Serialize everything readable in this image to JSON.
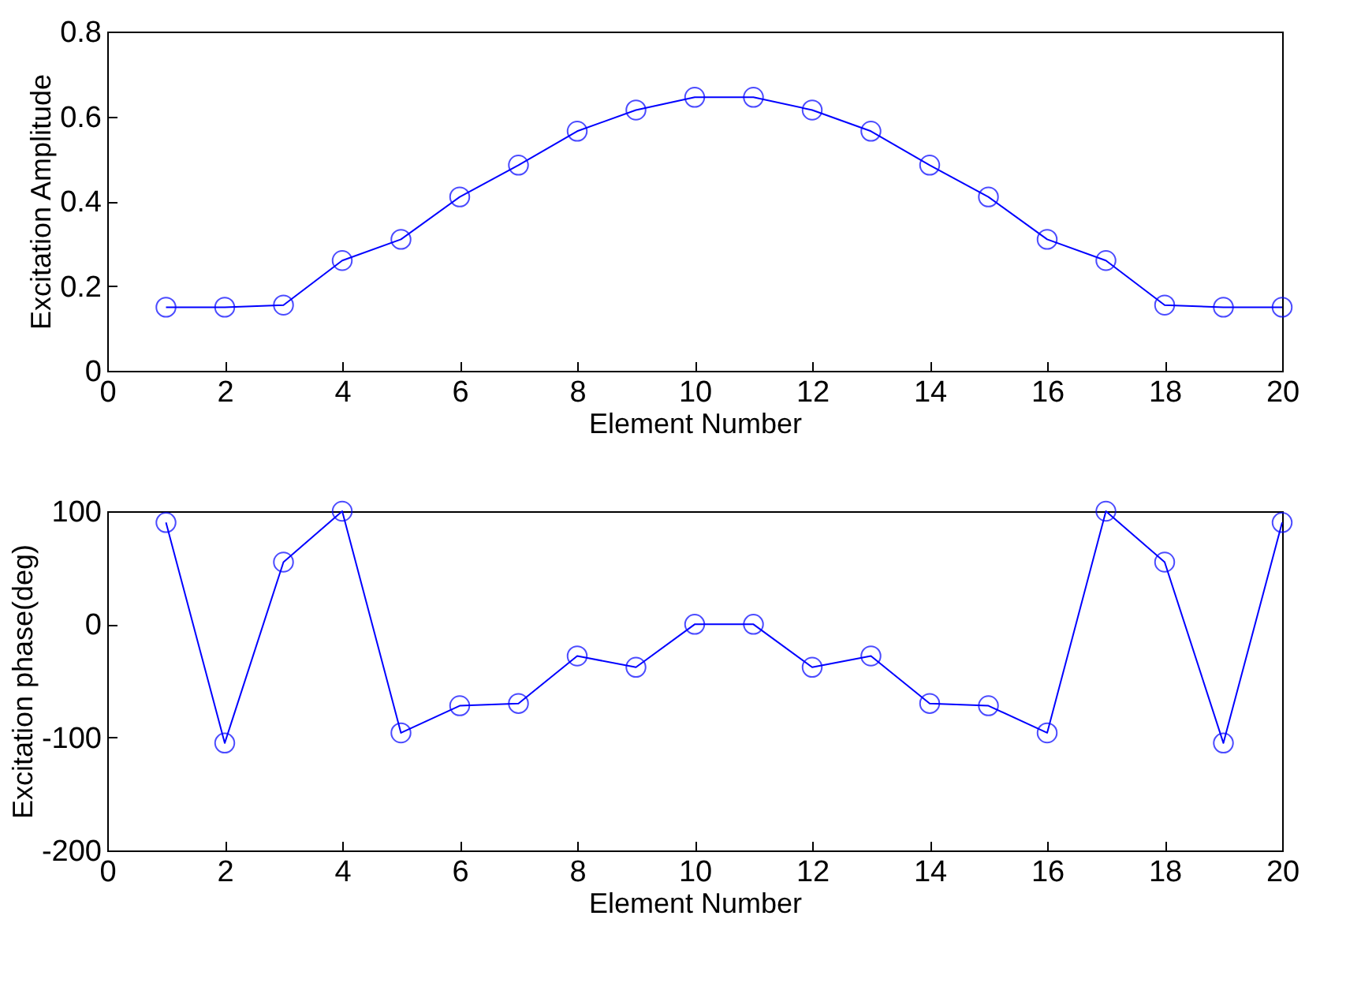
{
  "chart_data": [
    {
      "type": "line",
      "x": [
        1,
        2,
        3,
        4,
        5,
        6,
        7,
        8,
        9,
        10,
        11,
        12,
        13,
        14,
        15,
        16,
        17,
        18,
        19,
        20
      ],
      "xlabel": "Element Number",
      "ylabel": "Excitation Amplitude",
      "xlim": [
        0,
        20
      ],
      "xticks": [
        0,
        2,
        4,
        6,
        8,
        10,
        12,
        14,
        16,
        18,
        20
      ],
      "ylim": [
        0,
        0.8
      ],
      "yticks": [
        0,
        0.2,
        0.4,
        0.6,
        0.8
      ],
      "marker": "circle",
      "line_style": "solid",
      "grid": false,
      "legend": false,
      "series": [
        {
          "color": "#0000ff",
          "values": [
            0.15,
            0.15,
            0.155,
            0.26,
            0.31,
            0.41,
            0.485,
            0.565,
            0.615,
            0.645,
            0.645,
            0.615,
            0.565,
            0.485,
            0.41,
            0.31,
            0.26,
            0.155,
            0.15,
            0.15
          ]
        }
      ]
    },
    {
      "type": "line",
      "x": [
        1,
        2,
        3,
        4,
        5,
        6,
        7,
        8,
        9,
        10,
        11,
        12,
        13,
        14,
        15,
        16,
        17,
        18,
        19,
        20
      ],
      "xlabel": "Element Number",
      "ylabel": "Excitation phase(deg)",
      "xlim": [
        0,
        20
      ],
      "xticks": [
        0,
        2,
        4,
        6,
        8,
        10,
        12,
        14,
        16,
        18,
        20
      ],
      "ylim": [
        -200,
        100
      ],
      "yticks": [
        -200,
        -100,
        0,
        100
      ],
      "marker": "circle",
      "line_style": "solid",
      "grid": false,
      "legend": false,
      "series": [
        {
          "color": "#0000ff",
          "values": [
            90,
            -105,
            55,
            100,
            -96,
            -72,
            -70,
            -28,
            -38,
            0,
            0,
            -38,
            -28,
            -70,
            -72,
            -96,
            100,
            55,
            -105,
            90
          ]
        }
      ]
    }
  ]
}
